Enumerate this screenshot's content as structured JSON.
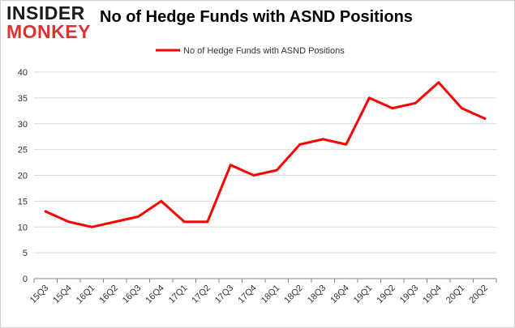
{
  "logo": {
    "top_text": "INSIDER",
    "bottom_text": "MONKEY"
  },
  "header": {
    "title": "No of Hedge Funds with ASND Positions"
  },
  "colors": {
    "line": "#ff0000",
    "grid": "#d9d9d9",
    "axis": "#888888",
    "text": "#333333",
    "logo_red": "#e0312f"
  },
  "chart_data": {
    "type": "line",
    "title": "No of Hedge Funds with ASND Positions",
    "xlabel": "",
    "ylabel": "",
    "ylim": [
      0,
      40
    ],
    "yticks": [
      0,
      5,
      10,
      15,
      20,
      25,
      30,
      35,
      40
    ],
    "grid": true,
    "legend_position": "top-center",
    "categories": [
      "15Q3",
      "15Q4",
      "16Q1",
      "16Q2",
      "16Q3",
      "16Q4",
      "17Q1",
      "17Q2",
      "17Q3",
      "17Q4",
      "18Q1",
      "18Q2",
      "18Q3",
      "18Q4",
      "19Q1",
      "19Q2",
      "19Q3",
      "19Q4",
      "20Q1",
      "20Q2"
    ],
    "series": [
      {
        "name": "No of Hedge Funds with ASND Positions",
        "color": "#ff0000",
        "values": [
          13,
          11,
          10,
          11,
          12,
          15,
          11,
          11,
          22,
          20,
          21,
          26,
          27,
          26,
          35,
          33,
          34,
          38,
          33,
          31
        ]
      }
    ]
  }
}
